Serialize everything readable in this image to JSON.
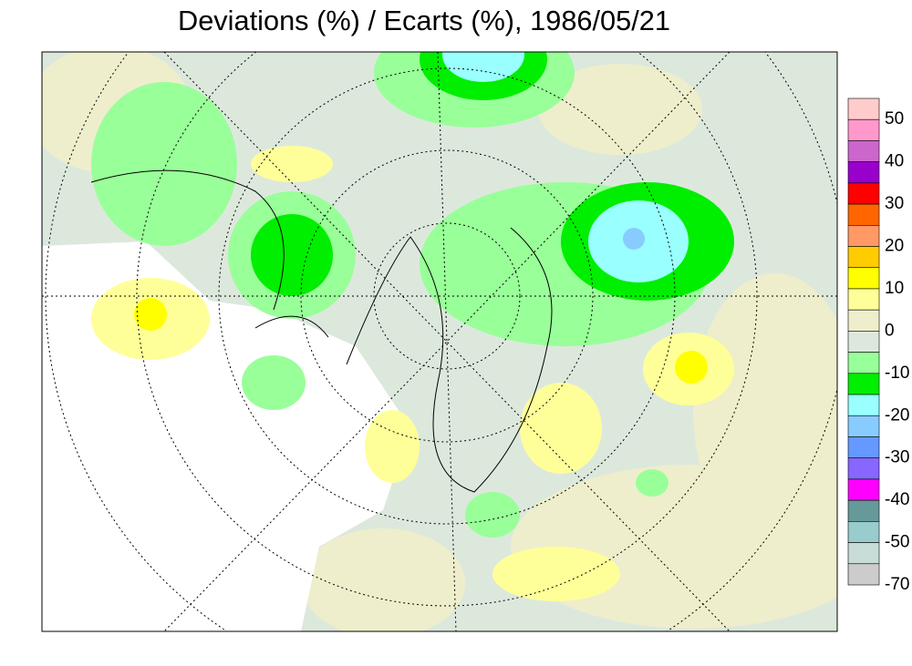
{
  "header": {
    "title": "Deviations (%) / Ecarts (%), 1986/05/21"
  },
  "legend": {
    "colors": [
      "#ffcccc",
      "#ff99cc",
      "#cc66cc",
      "#9900cc",
      "#ff0000",
      "#ff6600",
      "#ff9966",
      "#ffcc00",
      "#ffff00",
      "#ffff99",
      "#eeeecc",
      "#dde8dd",
      "#99ff99",
      "#00ee00",
      "#99ffff",
      "#88ccff",
      "#6699ff",
      "#8866ff",
      "#ff00ff",
      "#669999",
      "#99cccc",
      "#c8dcd8",
      "#cccccc"
    ],
    "labels": [
      "50",
      "40",
      "30",
      "20",
      "10",
      "0",
      "-10",
      "-20",
      "-30",
      "-40",
      "-50",
      "-70"
    ]
  }
}
